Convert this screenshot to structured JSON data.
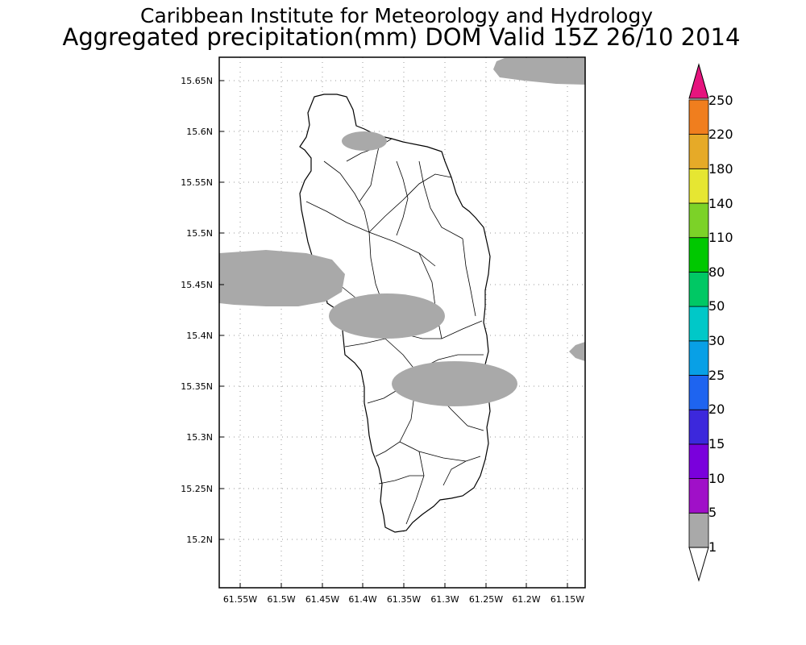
{
  "header": {
    "title_line1": "Caribbean Institute for Meteorology and Hydrology",
    "title_line2": "Aggregated precipitation(mm) DOM Valid 15Z 26/10 2014"
  },
  "map": {
    "lon_ticks": [
      "61.55W",
      "61.5W",
      "61.45W",
      "61.4W",
      "61.35W",
      "61.3W",
      "61.25W",
      "61.2W",
      "61.15W"
    ],
    "lat_ticks": [
      "15.65N",
      "15.6N",
      "15.55N",
      "15.5N",
      "15.45N",
      "15.4N",
      "15.35N",
      "15.3N",
      "15.25N",
      "15.2N"
    ],
    "precip_fill_color": "#a9a9a9",
    "precip_class": "1-5"
  },
  "colorbar": {
    "labels": [
      "1",
      "5",
      "10",
      "15",
      "20",
      "25",
      "30",
      "50",
      "80",
      "110",
      "140",
      "180",
      "220",
      "250"
    ],
    "colors": [
      "#a9a9a9",
      "#a010c8",
      "#7a00dc",
      "#3c28dc",
      "#1e64f0",
      "#08a0e6",
      "#00c8c8",
      "#00c864",
      "#00c800",
      "#7cd228",
      "#e6e632",
      "#e6aa28",
      "#f07e1e",
      "#f04646",
      "#e6147e"
    ]
  }
}
